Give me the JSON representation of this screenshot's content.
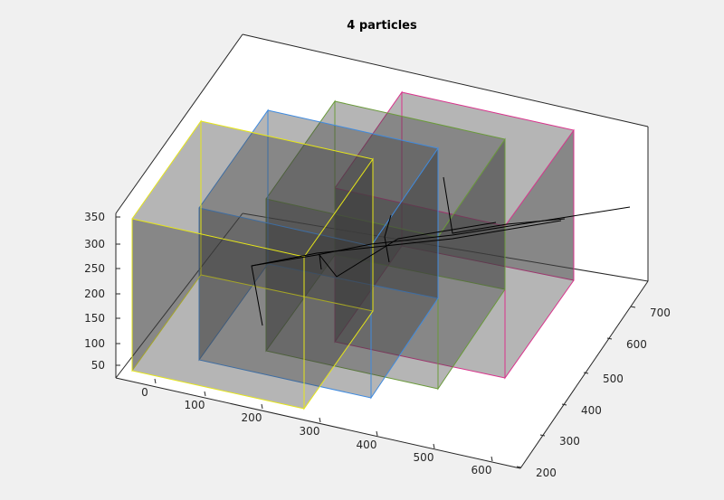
{
  "chart_data": {
    "type": "3d-volume",
    "title": "4 particles",
    "x_axis": {
      "ticks": [
        "0",
        "100",
        "200",
        "300",
        "400",
        "500",
        "600"
      ]
    },
    "y_axis": {
      "ticks": [
        "200",
        "300",
        "400",
        "500",
        "600",
        "700"
      ]
    },
    "z_axis": {
      "ticks": [
        "50",
        "100",
        "150",
        "200",
        "250",
        "300",
        "350"
      ]
    },
    "boxes": [
      {
        "name": "yellow",
        "edge_color": "#e6e619"
      },
      {
        "name": "blue",
        "edge_color": "#3f8be0"
      },
      {
        "name": "green",
        "edge_color": "#6a9a3a"
      },
      {
        "name": "magenta",
        "edge_color": "#d9338c"
      }
    ],
    "grid": false,
    "box": true
  }
}
